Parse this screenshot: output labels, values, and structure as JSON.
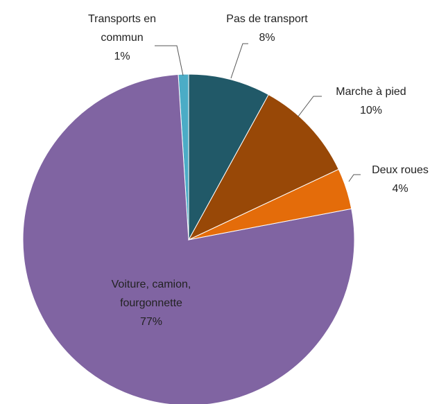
{
  "chart_data": {
    "type": "pie",
    "categories": [
      "Pas de transport",
      "Marche à pied",
      "Deux roues",
      "Voiture, camion, fourgonnette",
      "Transports en commun"
    ],
    "values": [
      8,
      10,
      4,
      77,
      1
    ],
    "value_labels": [
      "8%",
      "10%",
      "4%",
      "77%",
      "1%"
    ],
    "colors": [
      "#215968",
      "#984807",
      "#e46c0a",
      "#8064a2",
      "#4bacc6"
    ]
  }
}
